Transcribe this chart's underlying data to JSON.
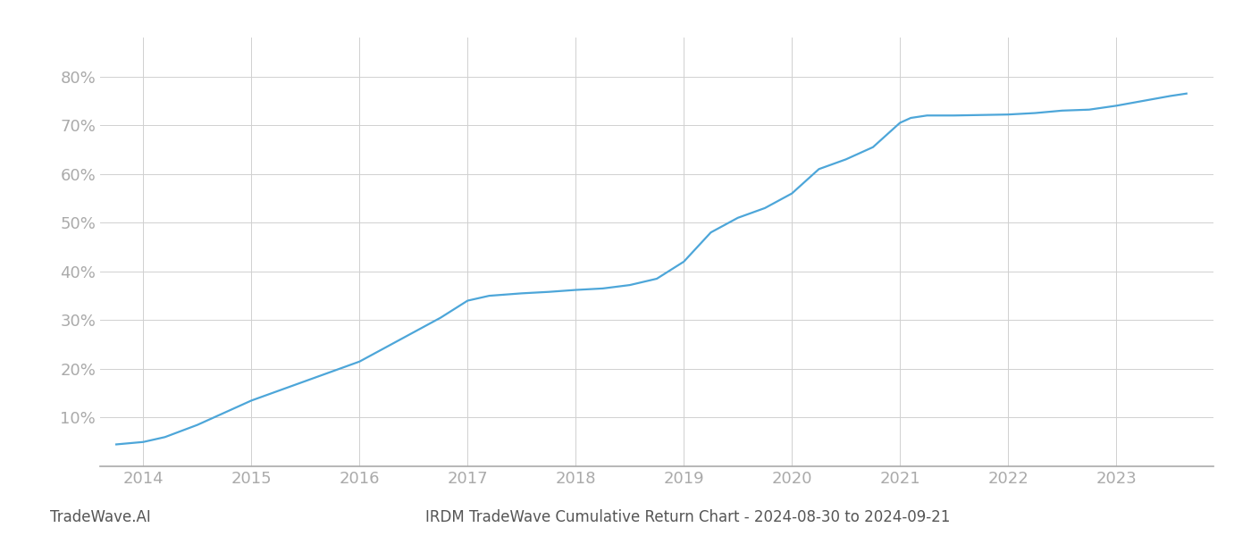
{
  "x_values": [
    2013.75,
    2014.0,
    2014.2,
    2014.5,
    2014.75,
    2015.0,
    2015.25,
    2015.5,
    2015.75,
    2016.0,
    2016.25,
    2016.5,
    2016.75,
    2017.0,
    2017.2,
    2017.5,
    2017.75,
    2018.0,
    2018.25,
    2018.5,
    2018.75,
    2019.0,
    2019.25,
    2019.5,
    2019.75,
    2020.0,
    2020.25,
    2020.5,
    2020.75,
    2021.0,
    2021.1,
    2021.25,
    2021.5,
    2021.75,
    2022.0,
    2022.25,
    2022.5,
    2022.75,
    2023.0,
    2023.25,
    2023.5,
    2023.65
  ],
  "y_values": [
    4.5,
    5.0,
    6.0,
    8.5,
    11.0,
    13.5,
    15.5,
    17.5,
    19.5,
    21.5,
    24.5,
    27.5,
    30.5,
    34.0,
    35.0,
    35.5,
    35.8,
    36.2,
    36.5,
    37.2,
    38.5,
    42.0,
    48.0,
    51.0,
    53.0,
    56.0,
    61.0,
    63.0,
    65.5,
    70.5,
    71.5,
    72.0,
    72.0,
    72.1,
    72.2,
    72.5,
    73.0,
    73.2,
    74.0,
    75.0,
    76.0,
    76.5
  ],
  "line_color": "#4da6d9",
  "line_width": 1.6,
  "background_color": "#ffffff",
  "grid_color": "#d0d0d0",
  "title": "IRDM TradeWave Cumulative Return Chart - 2024-08-30 to 2024-09-21",
  "watermark": "TradeWave.AI",
  "x_ticks": [
    2014,
    2015,
    2016,
    2017,
    2018,
    2019,
    2020,
    2021,
    2022,
    2023
  ],
  "y_ticks": [
    10,
    20,
    30,
    40,
    50,
    60,
    70,
    80
  ],
  "xlim": [
    2013.6,
    2023.9
  ],
  "ylim": [
    0,
    88
  ],
  "tick_color": "#aaaaaa",
  "axis_label_color": "#aaaaaa",
  "title_fontsize": 12,
  "tick_fontsize": 13,
  "watermark_fontsize": 12,
  "bottom_spine_color": "#aaaaaa"
}
